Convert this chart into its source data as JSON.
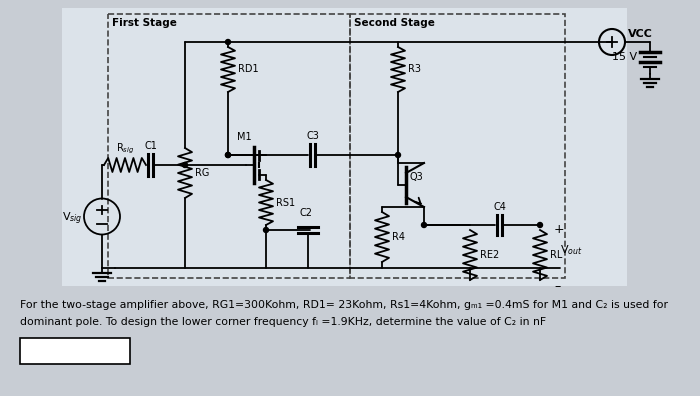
{
  "bg_color": "#c8cdd4",
  "circuit_bg": "#dce3ea",
  "text_color": "#000000",
  "caption_line1": "For the two-stage amplifier above, RG1=300Kohm, RD1= 23Kohm, Rs1=4Kohm, gₘ₁ =0.4mS for M1 and C₂ is used for",
  "caption_line2": "dominant pole. To design the lower corner frequency fₗ =1.9KHz, determine the value of C₂ in nF",
  "first_stage_label": "First Stage",
  "second_stage_label": "Second Stage",
  "vcc_label": "VCC",
  "v15_label": "15 V",
  "figsize": [
    7.0,
    3.96
  ],
  "dpi": 100
}
